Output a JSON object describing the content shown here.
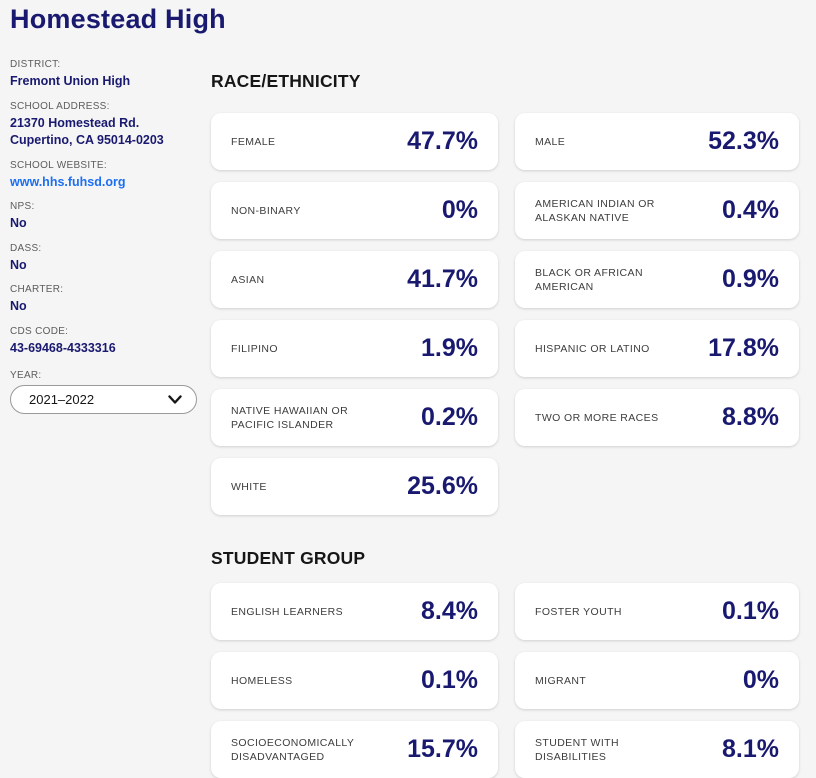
{
  "page": {
    "title": "Homestead High",
    "colors": {
      "background": "#f5f5f5",
      "navy": "#191970",
      "link_blue": "#1d6ff2",
      "heading": "#161616",
      "card_label_gray": "#3d3d3d",
      "sidebar_label_gray": "#5c5c5c"
    }
  },
  "sidebar": {
    "fields": [
      {
        "label": "DISTRICT:",
        "lines": [
          "Fremont Union High"
        ]
      },
      {
        "label": "SCHOOL ADDRESS:",
        "lines": [
          "21370 Homestead Rd.",
          "Cupertino, CA 95014-0203"
        ]
      },
      {
        "label": "SCHOOL WEBSITE:",
        "lines": [
          "www.hhs.fuhsd.org"
        ],
        "link": true
      },
      {
        "label": "NPS:",
        "lines": [
          "No"
        ]
      },
      {
        "label": "DASS:",
        "lines": [
          "No"
        ]
      },
      {
        "label": "CHARTER:",
        "lines": [
          "No"
        ]
      },
      {
        "label": "CDS CODE:",
        "lines": [
          "43-69468-4333316"
        ]
      }
    ],
    "year": {
      "label": "YEAR:",
      "selected": "2021–2022"
    }
  },
  "sections": [
    {
      "title": "RACE/ETHNICITY",
      "cards": [
        {
          "label": "FEMALE",
          "value": "47.7%"
        },
        {
          "label": "MALE",
          "value": "52.3%"
        },
        {
          "label": "NON-BINARY",
          "value": "0%"
        },
        {
          "label": "AMERICAN INDIAN OR ALASKAN NATIVE",
          "value": "0.4%"
        },
        {
          "label": "ASIAN",
          "value": "41.7%"
        },
        {
          "label": "BLACK OR AFRICAN AMERICAN",
          "value": "0.9%"
        },
        {
          "label": "FILIPINO",
          "value": "1.9%"
        },
        {
          "label": "HISPANIC OR LATINO",
          "value": "17.8%"
        },
        {
          "label": "NATIVE HAWAIIAN OR PACIFIC ISLANDER",
          "value": "0.2%"
        },
        {
          "label": "TWO OR MORE RACES",
          "value": "8.8%"
        },
        {
          "label": "WHITE",
          "value": "25.6%"
        }
      ]
    },
    {
      "title": "STUDENT GROUP",
      "cards": [
        {
          "label": "ENGLISH LEARNERS",
          "value": "8.4%"
        },
        {
          "label": "FOSTER YOUTH",
          "value": "0.1%"
        },
        {
          "label": "HOMELESS",
          "value": "0.1%"
        },
        {
          "label": "MIGRANT",
          "value": "0%"
        },
        {
          "label": "SOCIOECONOMICALLY DISADVANTAGED",
          "value": "15.7%"
        },
        {
          "label": "STUDENT WITH DISABILITIES",
          "value": "8.1%"
        }
      ]
    }
  ]
}
